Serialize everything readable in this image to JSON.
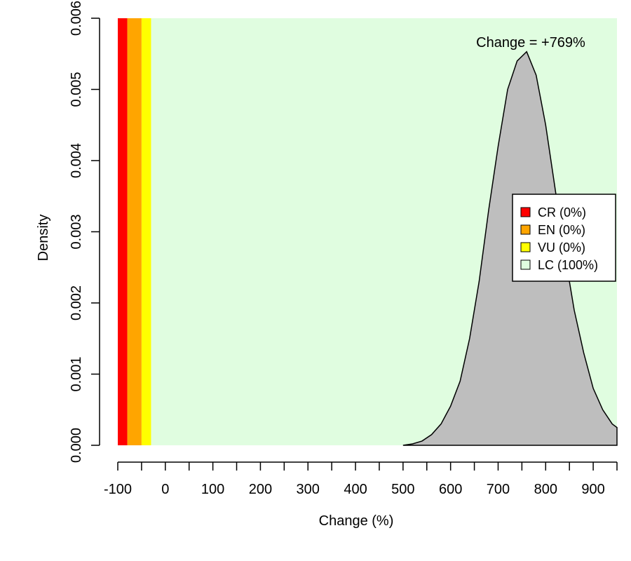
{
  "chart_data": {
    "type": "area",
    "title": "",
    "xlabel": "Change (%)",
    "ylabel": "Density",
    "xlim": [
      -100,
      950
    ],
    "ylim": [
      0,
      0.006
    ],
    "x_ticks": [
      -100,
      0,
      100,
      200,
      300,
      400,
      500,
      600,
      700,
      800,
      900
    ],
    "x_minor_ticks": [
      -50,
      50,
      150,
      250,
      350,
      450,
      550,
      650,
      750,
      850,
      950
    ],
    "y_ticks": [
      "0.000",
      "0.001",
      "0.002",
      "0.003",
      "0.004",
      "0.005",
      "0.006"
    ],
    "annotation": "Change = +769%",
    "zones": [
      {
        "name": "CR",
        "from": -100,
        "to": -80,
        "color": "#ff0000"
      },
      {
        "name": "EN",
        "from": -80,
        "to": -50,
        "color": "#ffa500"
      },
      {
        "name": "VU",
        "from": -50,
        "to": -30,
        "color": "#ffff00"
      },
      {
        "name": "LC",
        "from": -30,
        "to": 950,
        "color": "#e0fde0"
      }
    ],
    "density_series": {
      "name": "density",
      "fill": "#bebebe",
      "x": [
        500,
        520,
        540,
        560,
        580,
        600,
        620,
        640,
        660,
        680,
        700,
        720,
        740,
        760,
        780,
        800,
        820,
        840,
        860,
        880,
        900,
        920,
        940,
        950
      ],
      "y": [
        0.0,
        2e-05,
        6e-05,
        0.00015,
        0.0003,
        0.00055,
        0.0009,
        0.0015,
        0.0023,
        0.0033,
        0.0042,
        0.005,
        0.0054,
        0.00553,
        0.0052,
        0.0045,
        0.0036,
        0.0027,
        0.0019,
        0.0013,
        0.0008,
        0.0005,
        0.0003,
        0.00025
      ]
    },
    "legend": {
      "position": "right",
      "items": [
        {
          "label": "CR (0%)",
          "color": "#ff0000"
        },
        {
          "label": "EN (0%)",
          "color": "#ffa500"
        },
        {
          "label": "VU (0%)",
          "color": "#ffff00"
        },
        {
          "label": "LC (100%)",
          "color": "#e0fde0"
        }
      ]
    }
  }
}
